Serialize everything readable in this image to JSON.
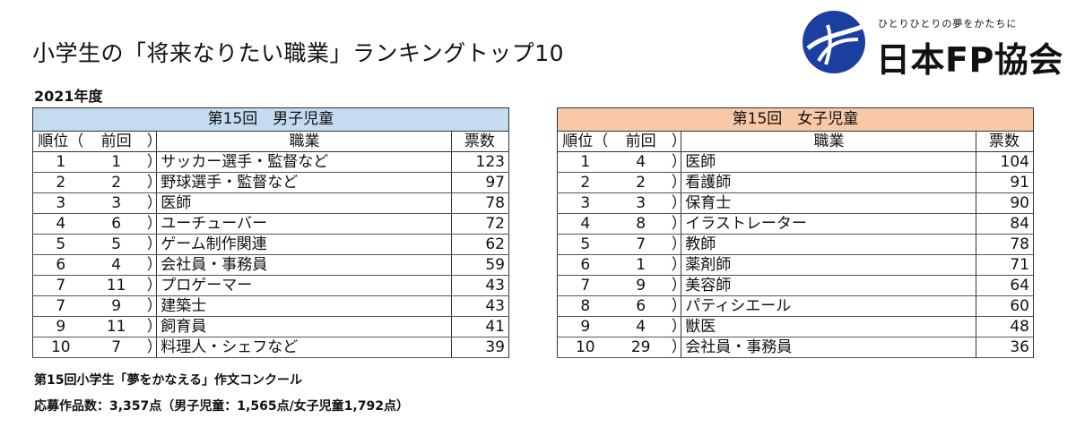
{
  "title": "小学生の「将来なりたい職業」ランキングトップ10",
  "year": "2021年度",
  "logo": {
    "tagline": "ひとりひとりの夢をかたちに",
    "name": "日本FP協会",
    "accent": "#1a3fa0"
  },
  "boys": {
    "heading": "第15回　男子児童",
    "headers": {
      "rank": "順位（",
      "prev": "前回",
      "close": "）",
      "job": "職業",
      "votes": "票数"
    },
    "rows": [
      {
        "rank": "1",
        "prev": "1",
        "job": "サッカー選手・監督など",
        "votes": "123"
      },
      {
        "rank": "2",
        "prev": "2",
        "job": "野球選手・監督など",
        "votes": "97"
      },
      {
        "rank": "3",
        "prev": "3",
        "job": "医師",
        "votes": "78"
      },
      {
        "rank": "4",
        "prev": "6",
        "job": "ユーチューバー",
        "votes": "72"
      },
      {
        "rank": "5",
        "prev": "5",
        "job": "ゲーム制作関連",
        "votes": "62"
      },
      {
        "rank": "6",
        "prev": "4",
        "job": "会社員・事務員",
        "votes": "59"
      },
      {
        "rank": "7",
        "prev": "11",
        "job": "プロゲーマー",
        "votes": "43"
      },
      {
        "rank": "7",
        "prev": "9",
        "job": "建築士",
        "votes": "43"
      },
      {
        "rank": "9",
        "prev": "11",
        "job": "飼育員",
        "votes": "41"
      },
      {
        "rank": "10",
        "prev": "7",
        "job": "料理人・シェフなど",
        "votes": "39"
      }
    ]
  },
  "girls": {
    "heading": "第15回　女子児童",
    "headers": {
      "rank": "順位（",
      "prev": "前回",
      "close": "）",
      "job": "職業",
      "votes": "票数"
    },
    "rows": [
      {
        "rank": "1",
        "prev": "4",
        "job": "医師",
        "votes": "104"
      },
      {
        "rank": "2",
        "prev": "2",
        "job": "看護師",
        "votes": "91"
      },
      {
        "rank": "3",
        "prev": "3",
        "job": "保育士",
        "votes": "90"
      },
      {
        "rank": "4",
        "prev": "8",
        "job": "イラストレーター",
        "votes": "84"
      },
      {
        "rank": "5",
        "prev": "7",
        "job": "教師",
        "votes": "78"
      },
      {
        "rank": "6",
        "prev": "1",
        "job": "薬剤師",
        "votes": "71"
      },
      {
        "rank": "7",
        "prev": "9",
        "job": "美容師",
        "votes": "64"
      },
      {
        "rank": "8",
        "prev": "6",
        "job": "パティシエール",
        "votes": "60"
      },
      {
        "rank": "9",
        "prev": "4",
        "job": "獣医",
        "votes": "48"
      },
      {
        "rank": "10",
        "prev": "29",
        "job": "会社員・事務員",
        "votes": "36"
      }
    ]
  },
  "footnotes": {
    "contest": "第15回小学生「夢をかなえる」作文コンクール",
    "entries": "応募作品数：3,357点（男子児童：1,565点/女子児童1,792点）"
  }
}
